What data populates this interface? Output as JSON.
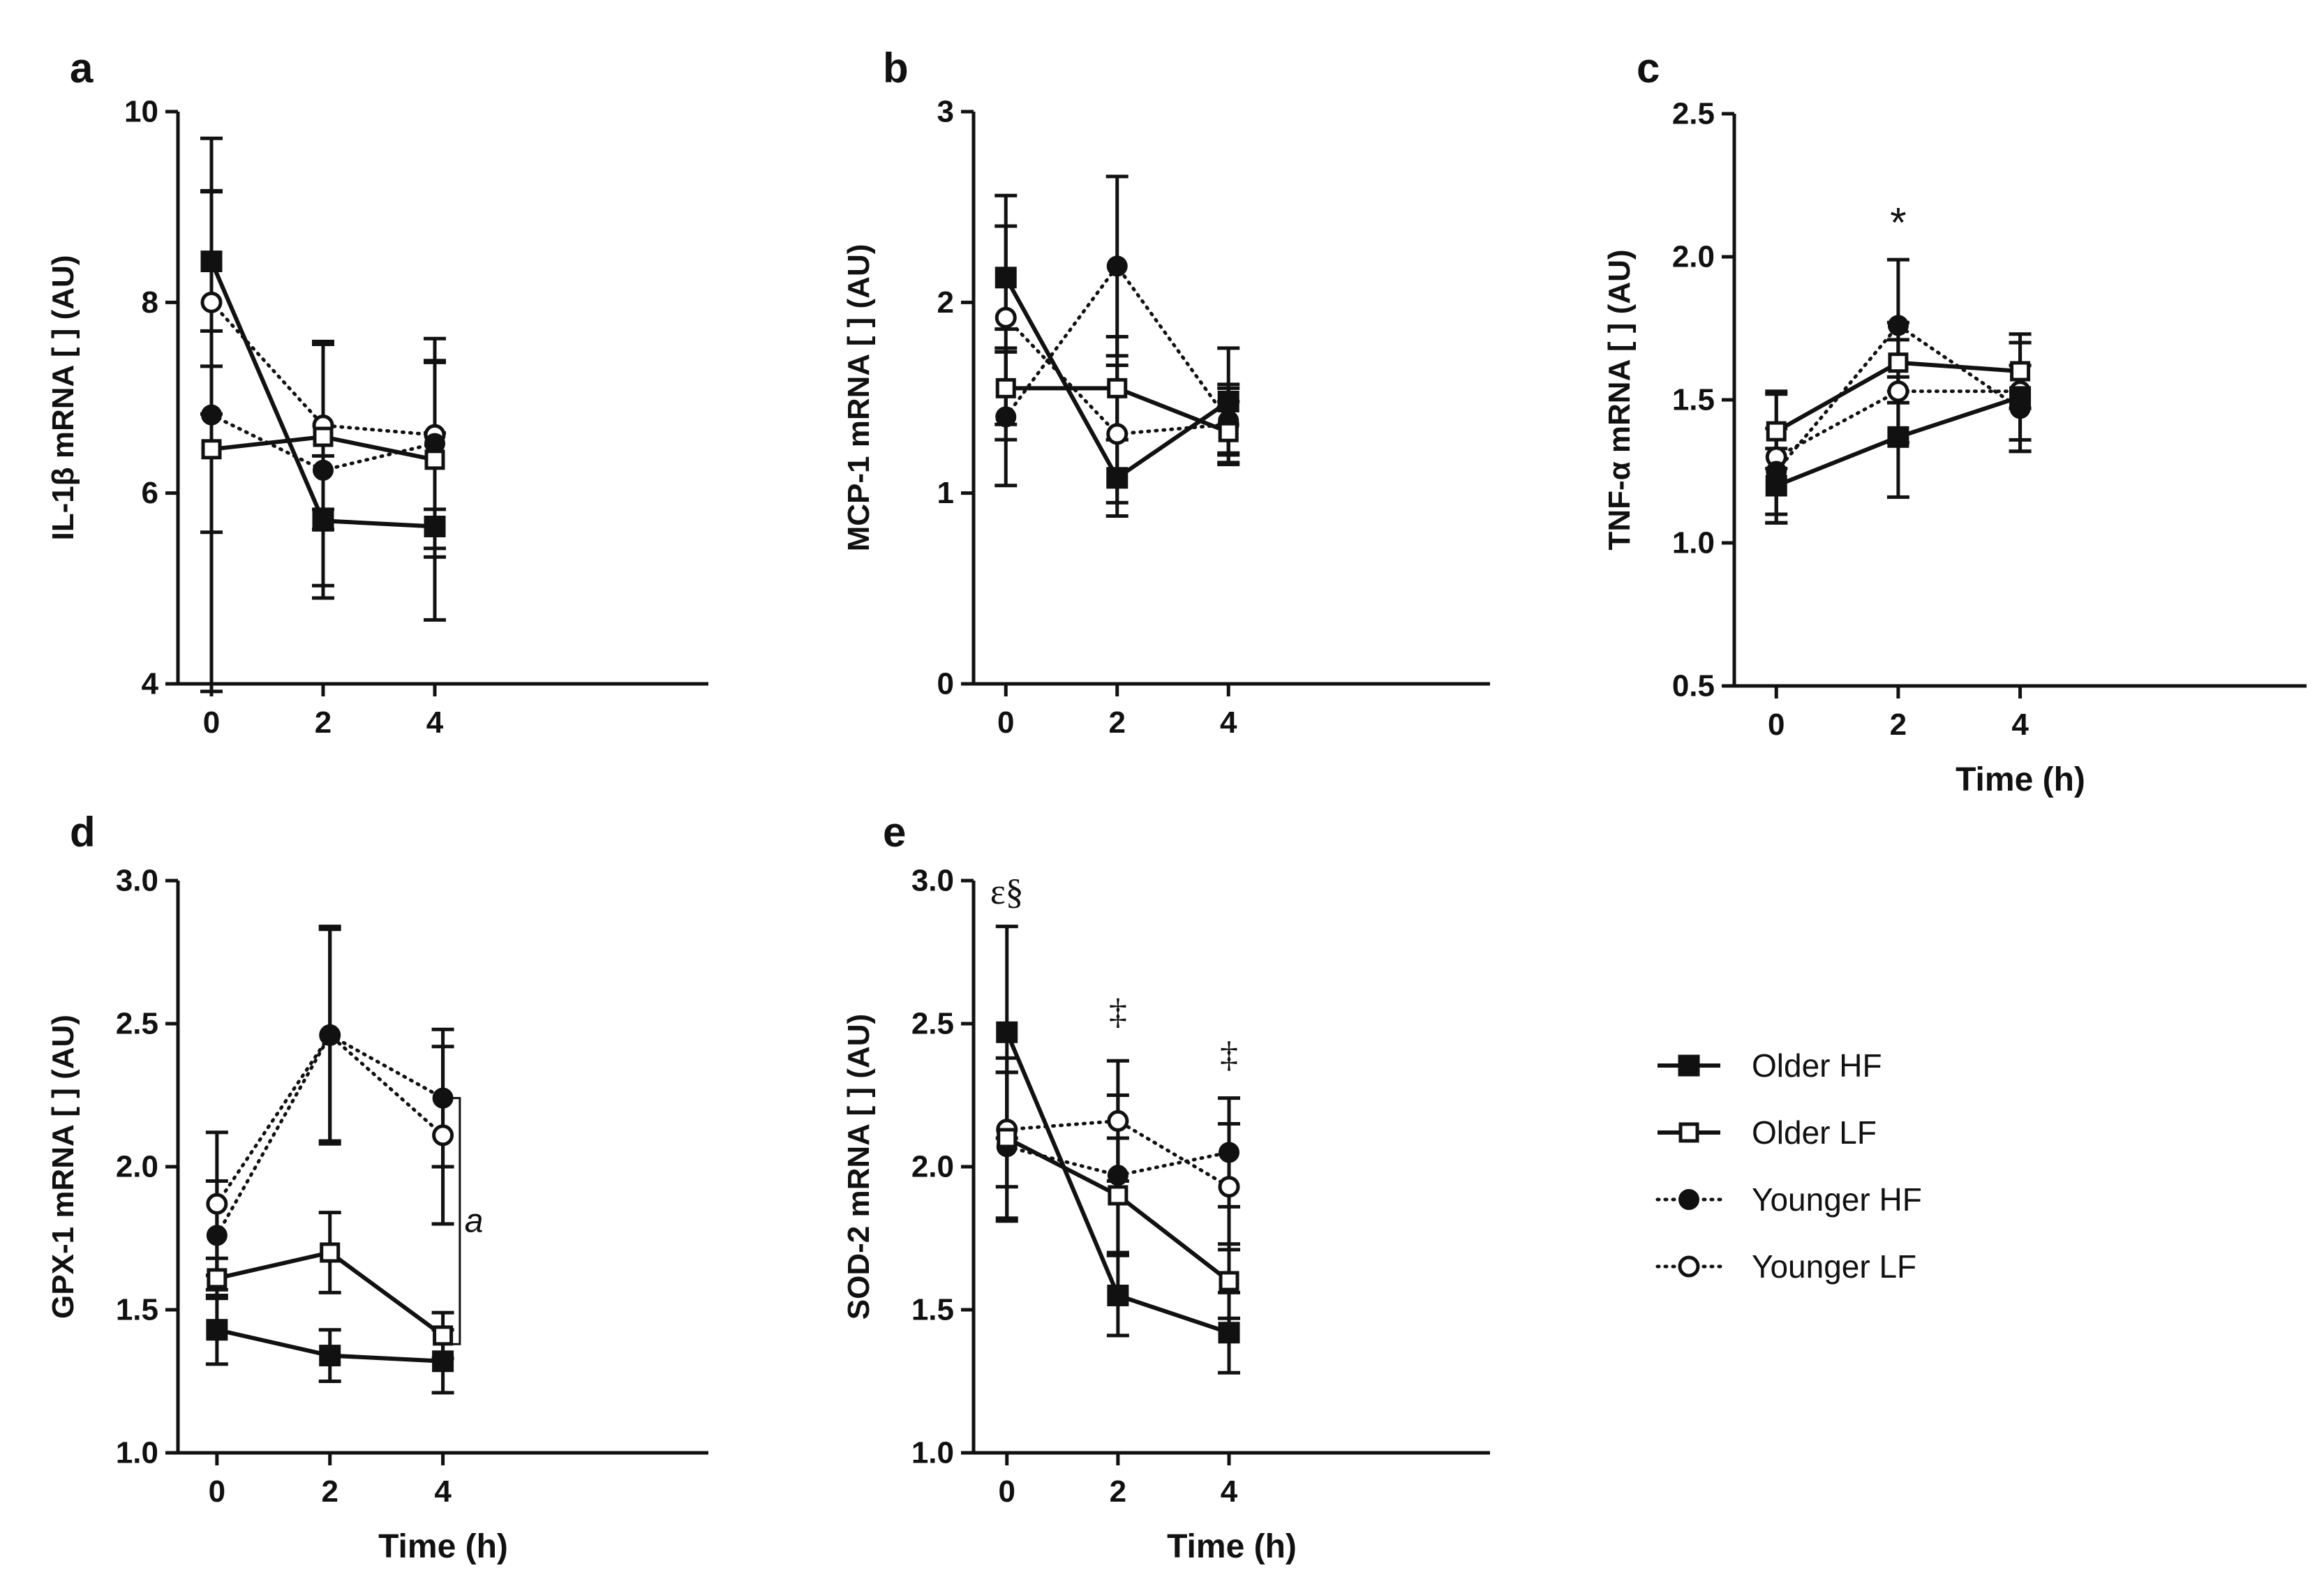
{
  "legend": {
    "placement": "right",
    "series": [
      {
        "name": "Older HF",
        "marker": "filled-square",
        "line": "solid"
      },
      {
        "name": "Older LF",
        "marker": "open-square",
        "line": "solid"
      },
      {
        "name": "Younger HF",
        "marker": "filled-circle",
        "line": "dotted"
      },
      {
        "name": "Younger LF",
        "marker": "open-circle",
        "line": "dotted"
      }
    ]
  },
  "chart_data": [
    {
      "panel": "a",
      "type": "line",
      "ylabel": "IL-1β mRNA [ ] (AU)",
      "xlabel": "",
      "x": [
        0,
        2,
        4
      ],
      "xticks": [
        "0",
        "2",
        "4"
      ],
      "ylim": [
        4,
        10
      ],
      "yticks": [
        4,
        6,
        8,
        10
      ],
      "ytick_labels": [
        "4",
        "6",
        "8",
        "10"
      ],
      "series": [
        {
          "name": "Older HF",
          "values": [
            8.43,
            5.71,
            5.65
          ],
          "err": [
            0.73,
            0.68,
            0.98
          ]
        },
        {
          "name": "Older LF",
          "values": [
            6.46,
            6.59,
            6.35
          ],
          "err": [
            0.87,
            0.97,
            1.02
          ]
        },
        {
          "name": "Younger HF",
          "values": [
            6.82,
            6.24,
            6.52
          ],
          "err": [
            2.9,
            1.34,
            1.1
          ]
        },
        {
          "name": "Younger LF",
          "values": [
            8.0,
            6.71,
            6.61
          ],
          "err": [
            1.17,
            0.88,
            0.78
          ]
        }
      ],
      "annotations": []
    },
    {
      "panel": "b",
      "type": "line",
      "ylabel": "MCP-1 mRNA [ ] (AU)",
      "xlabel": "",
      "x": [
        0,
        2,
        4
      ],
      "xticks": [
        "0",
        "2",
        "4"
      ],
      "ylim": [
        0,
        3
      ],
      "yticks": [
        0,
        1,
        2,
        3
      ],
      "ytick_labels": [
        "0",
        "1",
        "2",
        "3"
      ],
      "series": [
        {
          "name": "Older HF",
          "values": [
            2.13,
            1.08,
            1.48
          ],
          "err": [
            0.27,
            0.2,
            0.28
          ]
        },
        {
          "name": "Older LF",
          "values": [
            1.55,
            1.55,
            1.32
          ],
          "err": [
            0.19,
            0.27,
            0.16
          ]
        },
        {
          "name": "Younger HF",
          "values": [
            1.4,
            2.19,
            1.38
          ],
          "err": [
            0.36,
            0.47,
            0.17
          ]
        },
        {
          "name": "Younger LF",
          "values": [
            1.92,
            1.31,
            1.36
          ],
          "err": [
            0.64,
            0.36,
            0.21
          ]
        }
      ],
      "annotations": []
    },
    {
      "panel": "c",
      "type": "line",
      "ylabel": "TNF-α mRNA [ ] (AU)",
      "xlabel": "Time (h)",
      "x": [
        0,
        2,
        4
      ],
      "xticks": [
        "0",
        "2",
        "4"
      ],
      "ylim": [
        0.5,
        2.5
      ],
      "yticks": [
        0.5,
        1.0,
        1.5,
        2.0,
        2.5
      ],
      "ytick_labels": [
        "0.5",
        "1.0",
        "1.5",
        "2.0",
        "2.5"
      ],
      "series": [
        {
          "name": "Older HF",
          "values": [
            1.2,
            1.37,
            1.51
          ],
          "err": [
            0.13,
            0.21,
            0.19
          ]
        },
        {
          "name": "Older LF",
          "values": [
            1.39,
            1.63,
            1.6
          ],
          "err": [
            0.13,
            0.14,
            0.13
          ]
        },
        {
          "name": "Younger HF",
          "values": [
            1.25,
            1.76,
            1.47
          ],
          "err": [
            0.15,
            0.23,
            0.15
          ]
        },
        {
          "name": "Younger LF",
          "values": [
            1.3,
            1.53,
            1.53
          ],
          "err": [
            0.23,
            0.18,
            0.17
          ]
        }
      ],
      "annotations": [
        {
          "text": "*",
          "x": 2,
          "y": 2.12
        }
      ]
    },
    {
      "panel": "d",
      "type": "line",
      "ylabel": "GPX-1 mRNA [ ] (AU)",
      "xlabel": "Time (h)",
      "x": [
        0,
        2,
        4
      ],
      "xticks": [
        "0",
        "2",
        "4"
      ],
      "ylim": [
        1.0,
        3.0
      ],
      "yticks": [
        1.0,
        1.5,
        2.0,
        2.5,
        3.0
      ],
      "ytick_labels": [
        "1.0",
        "1.5",
        "2.0",
        "2.5",
        "3.0"
      ],
      "series": [
        {
          "name": "Older HF",
          "values": [
            1.43,
            1.34,
            1.32
          ],
          "err": [
            0.12,
            0.09,
            0.11
          ]
        },
        {
          "name": "Older LF",
          "values": [
            1.61,
            1.7,
            1.41
          ],
          "err": [
            0.07,
            0.14,
            0.08
          ]
        },
        {
          "name": "Younger HF",
          "values": [
            1.76,
            2.46,
            2.24
          ],
          "err": [
            0.19,
            0.37,
            0.24
          ]
        },
        {
          "name": "Younger LF",
          "values": [
            1.87,
            2.46,
            2.11
          ],
          "err": [
            0.25,
            0.38,
            0.31
          ]
        }
      ],
      "annotations": [
        {
          "text": "a",
          "x": 4.55,
          "y": 1.81
        }
      ]
    },
    {
      "panel": "e",
      "type": "line",
      "ylabel": "SOD-2 mRNA [ ] (AU)",
      "xlabel": "Time (h)",
      "x": [
        0,
        2,
        4
      ],
      "xticks": [
        "0",
        "2",
        "4"
      ],
      "ylim": [
        1.0,
        3.0
      ],
      "yticks": [
        1.0,
        1.5,
        2.0,
        2.5,
        3.0
      ],
      "ytick_labels": [
        "1.0",
        "1.5",
        "2.0",
        "2.5",
        "3.0"
      ],
      "series": [
        {
          "name": "Older HF",
          "values": [
            2.47,
            1.55,
            1.42
          ],
          "err": [
            0.37,
            0.14,
            0.14
          ]
        },
        {
          "name": "Older LF",
          "values": [
            2.1,
            1.9,
            1.6
          ],
          "err": [
            0.28,
            0.2,
            0.13
          ]
        },
        {
          "name": "Younger HF",
          "values": [
            2.07,
            1.97,
            2.05
          ],
          "err": [
            0.26,
            0.28,
            0.19
          ]
        },
        {
          "name": "Younger LF",
          "values": [
            2.13,
            2.16,
            1.93
          ],
          "err": [
            0.2,
            0.21,
            0.22
          ]
        }
      ],
      "annotations": [
        {
          "text": "ε§",
          "x": 0,
          "y": 2.96
        },
        {
          "text": "‡",
          "x": 2,
          "y": 2.54
        },
        {
          "text": "‡",
          "x": 4,
          "y": 2.39
        }
      ]
    }
  ]
}
